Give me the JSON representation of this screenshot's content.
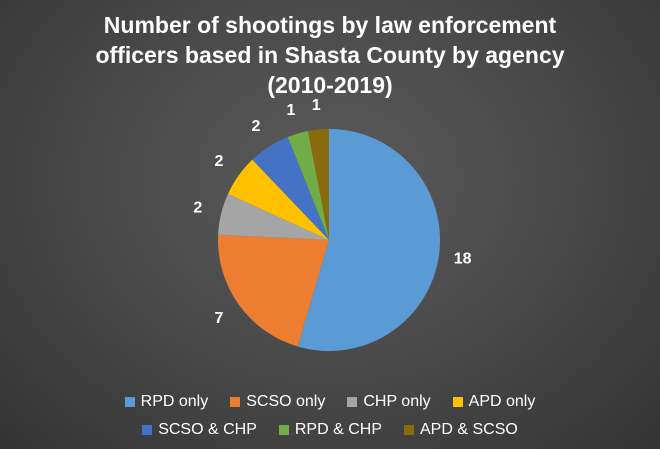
{
  "chart_data": {
    "type": "pie",
    "title": "Number of shootings by law enforcement officers based in Shasta County by agency (2010-2019)",
    "title_lines": [
      "Number of shootings by law enforcement",
      "officers based in Shasta County by agency",
      "(2010-2019)"
    ],
    "categories": [
      "RPD only",
      "SCSO only",
      "CHP only",
      "APD only",
      "SCSO & CHP",
      "RPD & CHP",
      "APD & SCSO"
    ],
    "values": [
      18,
      7,
      2,
      2,
      2,
      1,
      1
    ],
    "colors": [
      "#5b9bd5",
      "#ed7d31",
      "#a5a5a5",
      "#ffc000",
      "#4472c4",
      "#70ad47",
      "#8a6a0c"
    ],
    "legend_position": "bottom",
    "start_angle": "12 o'clock",
    "direction": "clockwise"
  }
}
